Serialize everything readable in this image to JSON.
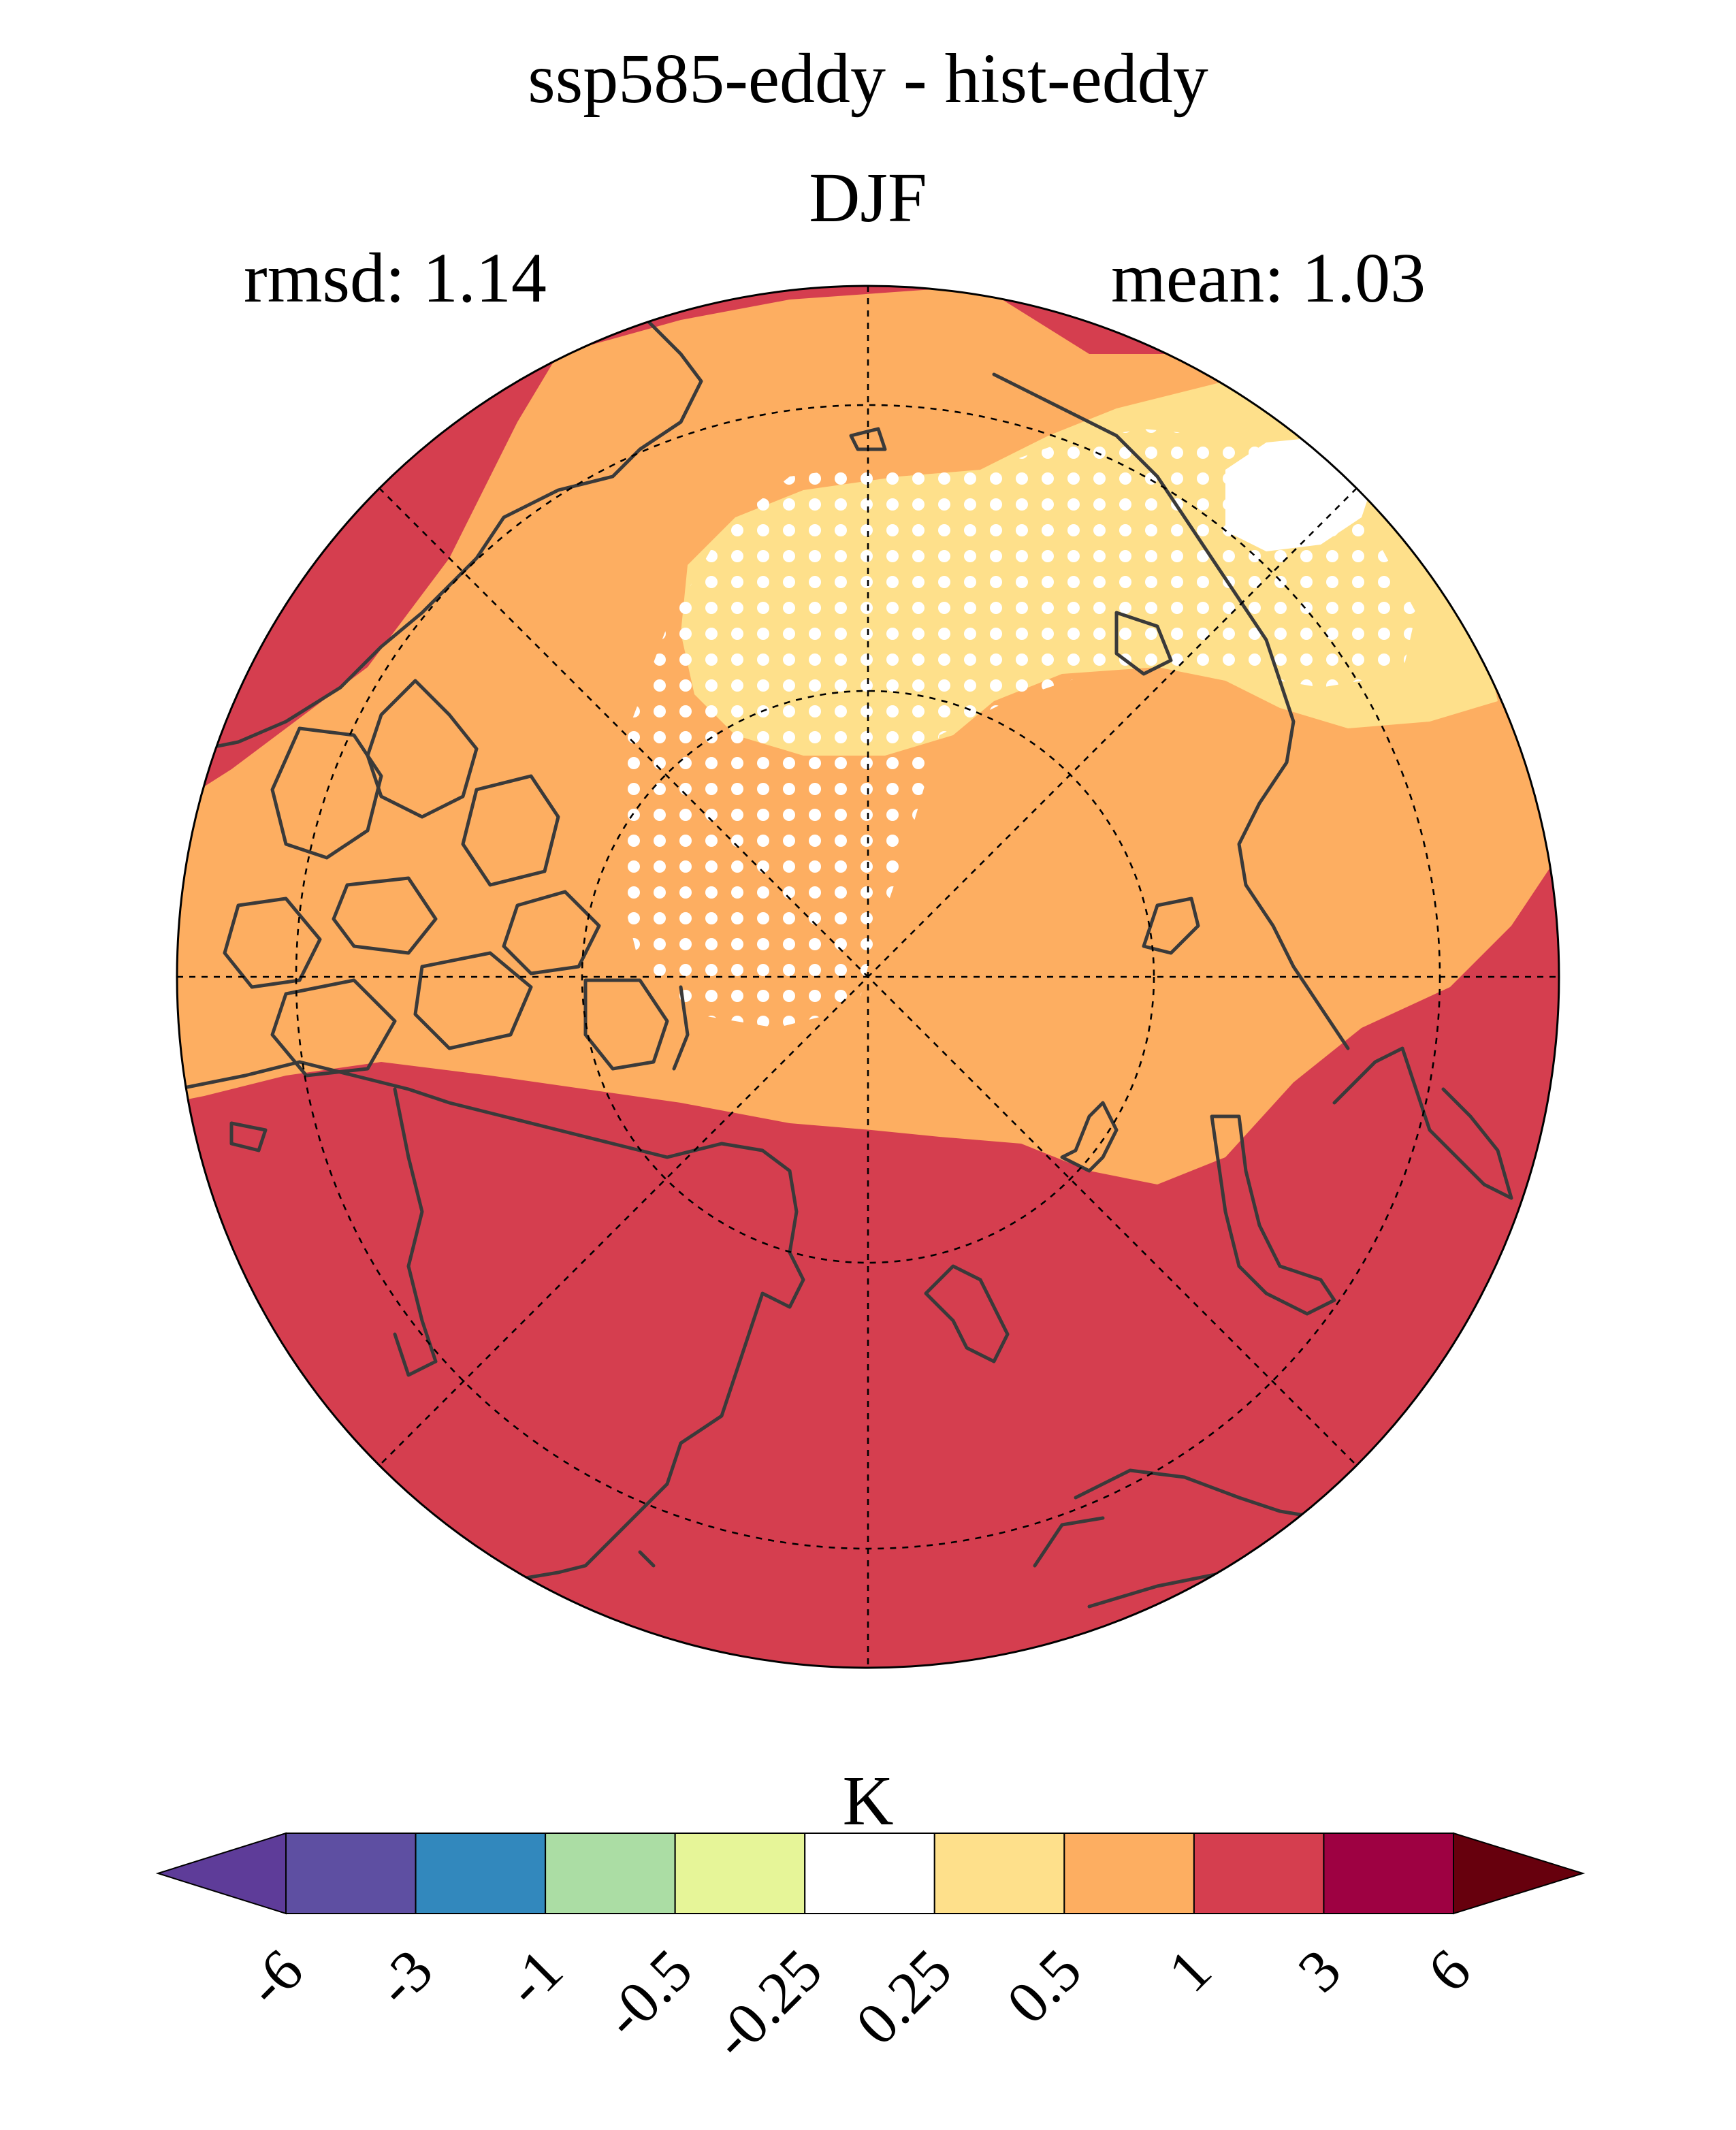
{
  "title": "ssp585-eddy - hist-eddy",
  "subtitle": "DJF",
  "left_annotation": "rmsd: 1.14",
  "right_annotation": "mean: 1.03",
  "colorbar": {
    "unit": "K",
    "levels": [
      "-6",
      "-3",
      "-1",
      "-0.5",
      "-0.25",
      "0.25",
      "0.5",
      "1",
      "3",
      "6"
    ],
    "colors": [
      "#5e3c99",
      "#5e4fa2",
      "#3288bd",
      "#abdda4",
      "#e6f598",
      "#ffffff",
      "#fee08b",
      "#fdae61",
      "#d53e4f",
      "#9e0142",
      "#67000d"
    ]
  },
  "map": {
    "projection": "north-polar-stereographic",
    "field_colors": {
      "outer": "#d53e4f",
      "mid": "#fdae61",
      "low": "#fee08b",
      "near_zero": "#ffffff"
    },
    "stipple_color": "#ffffff",
    "coastline_color": "#3a3a3a"
  }
}
